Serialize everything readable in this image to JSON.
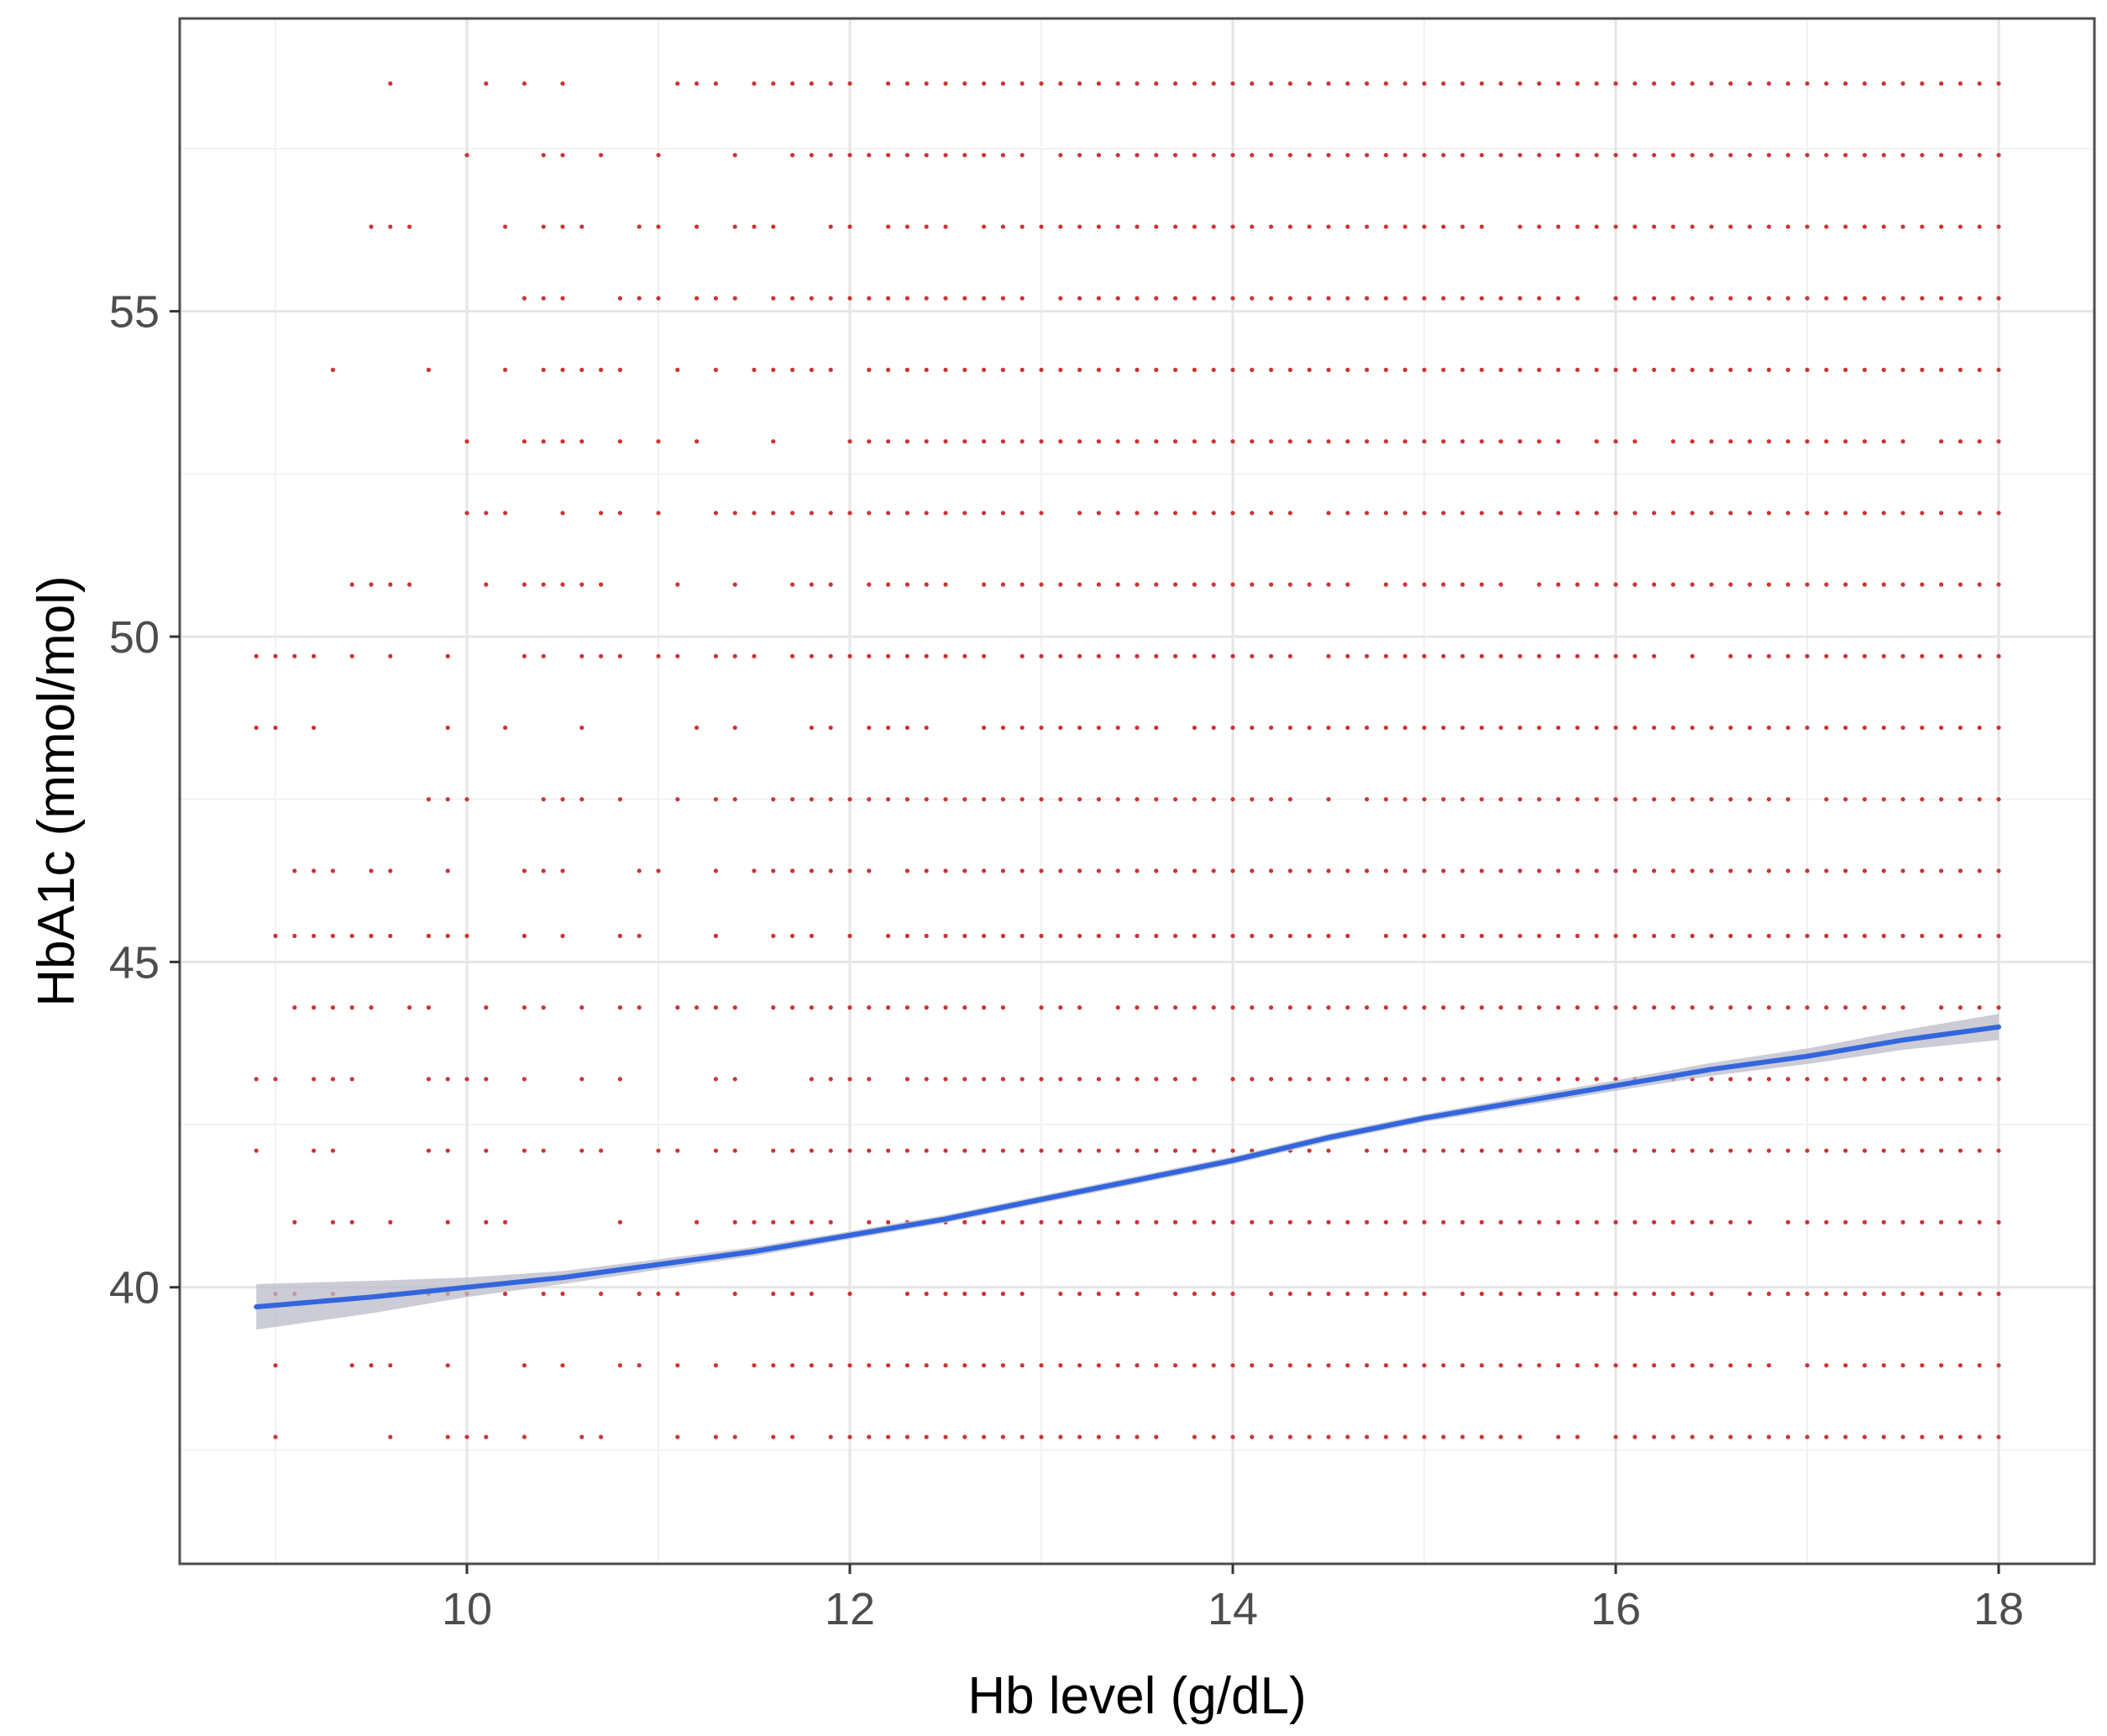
{
  "chart_data": {
    "type": "scatter",
    "title": "",
    "xlabel": "Hb level (g/dL)",
    "ylabel": "HbA1c (mmol/mol)",
    "xlim": [
      8.5,
      18.5
    ],
    "ylim": [
      35.75,
      59.5
    ],
    "x_ticks": [
      10,
      12,
      14,
      16,
      18
    ],
    "y_ticks": [
      40,
      45,
      50,
      55
    ],
    "x_tick_labels": [
      "10",
      "12",
      "14",
      "16",
      "18"
    ],
    "y_tick_labels": [
      "40",
      "45",
      "50",
      "55"
    ],
    "grid": true,
    "legend": "none",
    "point_colors": {
      "scatter": "#cc3333",
      "smooth_line": "#3366dd",
      "confidence_band": "#bbbbc8"
    },
    "scatter_points": {
      "description_free": true,
      "x_range": [
        8.9,
        18.0
      ],
      "x_step": 0.1,
      "y_levels": [
        37.7,
        38.8,
        39.9,
        41.0,
        42.1,
        43.2,
        44.3,
        45.4,
        46.4,
        47.5,
        48.6,
        49.7,
        50.8,
        51.9,
        53.0,
        54.1,
        55.2,
        56.3,
        57.4,
        58.5
      ],
      "first_x_by_level": [
        9.0,
        8.9,
        8.9,
        8.9,
        8.9,
        8.9,
        9.1,
        8.9,
        8.9,
        9.5,
        8.9,
        8.9,
        9.4,
        9.5,
        9.4,
        9.2,
        10.3,
        9.5,
        10.0,
        9.2
      ]
    },
    "series": [
      {
        "type": "smooth",
        "x": [
          8.9,
          9.5,
          10.0,
          10.5,
          11.0,
          11.5,
          12.0,
          12.5,
          13.0,
          13.5,
          14.0,
          14.5,
          15.0,
          15.5,
          16.0,
          16.5,
          17.0,
          17.5,
          18.0
        ],
        "y": [
          39.7,
          39.85,
          40.0,
          40.15,
          40.35,
          40.55,
          40.8,
          41.05,
          41.35,
          41.65,
          41.95,
          42.3,
          42.6,
          42.85,
          43.1,
          43.35,
          43.55,
          43.8,
          44.0
        ],
        "ci_halfwidth": [
          0.35,
          0.25,
          0.15,
          0.1,
          0.08,
          0.07,
          0.06,
          0.06,
          0.06,
          0.06,
          0.06,
          0.06,
          0.06,
          0.07,
          0.08,
          0.1,
          0.12,
          0.15,
          0.2
        ]
      }
    ]
  }
}
